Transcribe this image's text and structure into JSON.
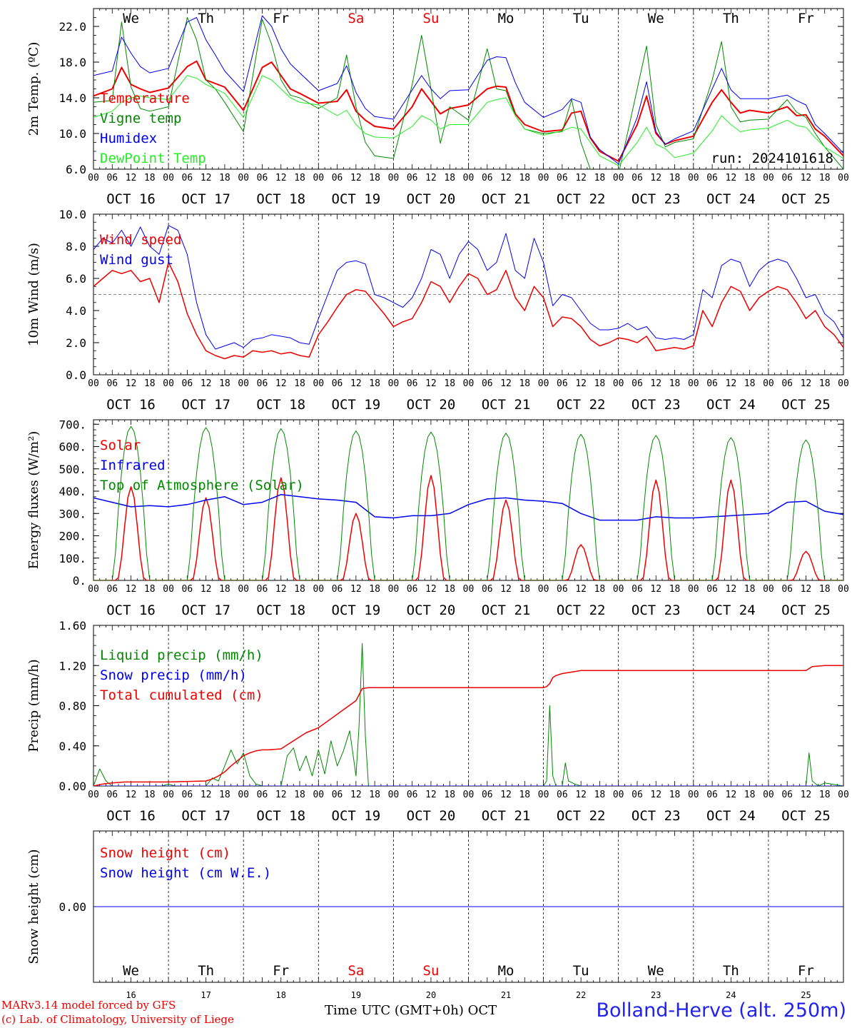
{
  "days": [
    {
      "weekday": "We",
      "date": "OCT 16",
      "num": "16",
      "weekend": false
    },
    {
      "weekday": "Th",
      "date": "OCT 17",
      "num": "17",
      "weekend": false
    },
    {
      "weekday": "Fr",
      "date": "OCT 18",
      "num": "18",
      "weekend": false
    },
    {
      "weekday": "Sa",
      "date": "OCT 19",
      "num": "19",
      "weekend": true
    },
    {
      "weekday": "Su",
      "date": "OCT 20",
      "num": "20",
      "weekend": true
    },
    {
      "weekday": "Mo",
      "date": "OCT 21",
      "num": "21",
      "weekend": false
    },
    {
      "weekday": "Tu",
      "date": "OCT 22",
      "num": "22",
      "weekend": false
    },
    {
      "weekday": "We",
      "date": "OCT 23",
      "num": "23",
      "weekend": false
    },
    {
      "weekday": "Th",
      "date": "OCT 24",
      "num": "24",
      "weekend": false
    },
    {
      "weekday": "Fr",
      "date": "OCT 25",
      "num": "25",
      "weekend": false
    }
  ],
  "hour_labels": [
    "00",
    "06",
    "12",
    "18"
  ],
  "footer": {
    "credit_line1": "MARv3.14 model forced by GFS",
    "credit_line2": "(c) Lab. of Climatology, University of Liege",
    "time_axis_label": "Time UTC (GMT+0h) OCT",
    "station": "Bolland-Herve (alt. 250m)"
  },
  "colors": {
    "red": "#ee0000",
    "green": "#008800",
    "blue": "#0000ee",
    "lightgreen": "#22ee22",
    "purple": "#880088",
    "weekend": "#ee0000"
  },
  "chart_data": [
    {
      "type": "line",
      "ylabel": "2m Temp. (ºC)",
      "ylim": [
        6,
        24
      ],
      "yticks": [
        6,
        10,
        14,
        18,
        22
      ],
      "ytick_labels": [
        "6.0",
        "10.0",
        "14.0",
        "18.0",
        "22.0"
      ],
      "run_label": "run: 2024101618",
      "x_hours": [
        0,
        6,
        9,
        12,
        15,
        18,
        24,
        30,
        33,
        36,
        39,
        42,
        48,
        54,
        57,
        60,
        63,
        66,
        72,
        78,
        81,
        84,
        87,
        90,
        96,
        102,
        105,
        108,
        111,
        114,
        120,
        126,
        129,
        132,
        135,
        138,
        144,
        150,
        153,
        156,
        159,
        162,
        168,
        174,
        177,
        180,
        183,
        186,
        192,
        198,
        201,
        204,
        207,
        210,
        216,
        222,
        225,
        228,
        231,
        234,
        240
      ],
      "series": [
        {
          "name": "Temperature",
          "color": "#ee0000",
          "width": 2,
          "values": [
            14.2,
            15.0,
            17.4,
            15.5,
            15.0,
            14.6,
            15.1,
            17.5,
            18.1,
            16.0,
            15.6,
            15.2,
            12.6,
            17.4,
            18.0,
            16.5,
            15.0,
            14.5,
            13.4,
            13.6,
            14.9,
            12.5,
            11.5,
            10.8,
            10.5,
            13.0,
            15.0,
            13.6,
            12.2,
            12.8,
            13.2,
            15.0,
            15.3,
            15.2,
            12.2,
            11.0,
            10.2,
            10.4,
            12.3,
            12.5,
            9.5,
            8.0,
            6.9,
            11.0,
            14.2,
            10.0,
            8.8,
            9.2,
            9.7,
            13.5,
            14.9,
            13.5,
            12.3,
            12.6,
            12.3,
            13.0,
            12.0,
            12.1,
            10.5,
            9.7,
            7.5
          ]
        },
        {
          "name": "Vigne temp",
          "color": "#008800",
          "width": 1,
          "values": [
            13.5,
            13.7,
            22.5,
            15.2,
            12.8,
            12.5,
            13.0,
            23.0,
            20.5,
            16.0,
            15.0,
            13.5,
            10.2,
            22.8,
            20.0,
            16.0,
            14.3,
            14.0,
            12.8,
            14.0,
            18.8,
            13.0,
            9.0,
            7.5,
            7.2,
            15.5,
            21.0,
            15.0,
            8.9,
            13.0,
            11.5,
            19.5,
            15.0,
            14.8,
            12.0,
            10.5,
            10.0,
            10.2,
            13.8,
            9.0,
            6.0,
            5.8,
            5.4,
            15.0,
            19.8,
            11.0,
            8.5,
            9.0,
            9.4,
            16.0,
            20.3,
            13.0,
            11.3,
            11.5,
            11.6,
            13.8,
            12.4,
            11.8,
            10.0,
            8.5,
            6.0
          ]
        },
        {
          "name": "Humidex",
          "color": "#0000ee",
          "width": 1,
          "values": [
            16.5,
            17.0,
            20.8,
            19.0,
            17.5,
            16.8,
            17.3,
            22.5,
            23.0,
            20.5,
            18.8,
            17.0,
            14.7,
            23.2,
            22.0,
            19.5,
            17.8,
            16.8,
            14.8,
            15.6,
            17.6,
            14.6,
            12.8,
            11.9,
            11.6,
            14.9,
            16.5,
            15.0,
            13.9,
            14.8,
            14.9,
            18.2,
            18.6,
            18.5,
            15.7,
            13.5,
            11.8,
            12.7,
            13.9,
            13.5,
            9.6,
            8.2,
            6.6,
            11.8,
            15.8,
            10.2,
            8.8,
            9.4,
            10.3,
            15.0,
            17.3,
            14.9,
            13.9,
            13.9,
            13.9,
            14.3,
            13.7,
            13.2,
            11.0,
            10.0,
            7.8
          ]
        },
        {
          "name": "DewPoint Temp",
          "color": "#22ee22",
          "width": 1,
          "values": [
            11.8,
            12.5,
            13.5,
            14.0,
            14.2,
            14.0,
            13.8,
            16.5,
            16.2,
            15.5,
            15.0,
            14.5,
            11.8,
            16.5,
            16.0,
            15.0,
            14.0,
            13.5,
            13.2,
            12.0,
            12.6,
            11.0,
            10.0,
            9.6,
            9.5,
            10.8,
            12.0,
            11.5,
            10.5,
            11.0,
            11.0,
            13.5,
            13.8,
            14.0,
            12.0,
            10.5,
            9.8,
            10.3,
            10.7,
            10.5,
            9.0,
            7.5,
            6.4,
            9.0,
            10.7,
            8.8,
            8.3,
            7.3,
            7.8,
            10.3,
            12.0,
            11.0,
            10.2,
            10.4,
            10.6,
            11.5,
            10.9,
            10.7,
            9.5,
            8.5,
            7.2
          ]
        }
      ]
    },
    {
      "type": "line",
      "ylabel": "10m Wind (m/s)",
      "ylim": [
        0,
        10
      ],
      "yticks": [
        0,
        2,
        4,
        6,
        8,
        10
      ],
      "ytick_labels": [
        "0.0",
        "2.0",
        "4.0",
        "6.0",
        "8.0",
        "10.0"
      ],
      "reference_line": 5,
      "x_hours": [
        0,
        3,
        6,
        9,
        12,
        15,
        18,
        21,
        24,
        27,
        30,
        33,
        36,
        39,
        42,
        45,
        48,
        51,
        54,
        57,
        60,
        63,
        66,
        69,
        72,
        75,
        78,
        81,
        84,
        87,
        90,
        93,
        96,
        99,
        102,
        105,
        108,
        111,
        114,
        117,
        120,
        123,
        126,
        129,
        132,
        135,
        138,
        141,
        144,
        147,
        150,
        153,
        156,
        159,
        162,
        165,
        168,
        171,
        174,
        177,
        180,
        183,
        186,
        189,
        192,
        195,
        198,
        201,
        204,
        207,
        210,
        213,
        216,
        219,
        222,
        225,
        228,
        231,
        234,
        237,
        240
      ],
      "series": [
        {
          "name": "Wind speed",
          "color": "#ee0000",
          "width": 1.5,
          "values": [
            5.5,
            6.0,
            6.5,
            6.3,
            6.5,
            5.8,
            6.0,
            4.5,
            7.0,
            5.8,
            3.8,
            2.5,
            1.5,
            1.2,
            1.0,
            1.2,
            1.1,
            1.5,
            1.4,
            1.5,
            1.3,
            1.4,
            1.2,
            1.1,
            2.5,
            3.3,
            4.2,
            5.0,
            5.3,
            5.2,
            4.5,
            3.8,
            3.0,
            3.3,
            3.5,
            4.5,
            5.8,
            5.5,
            4.5,
            5.5,
            6.3,
            6.0,
            5.0,
            5.3,
            6.5,
            4.8,
            4.0,
            5.5,
            4.8,
            3.0,
            3.6,
            3.5,
            3.0,
            2.2,
            1.8,
            2.0,
            2.3,
            2.2,
            2.0,
            2.4,
            1.5,
            1.6,
            1.7,
            1.6,
            1.8,
            4.0,
            3.0,
            4.5,
            5.5,
            5.2,
            4.0,
            4.8,
            5.2,
            5.5,
            5.3,
            4.5,
            3.5,
            4.0,
            3.0,
            2.5,
            1.7
          ]
        },
        {
          "name": "Wind gust",
          "color": "#0000ee",
          "width": 1,
          "values": [
            7.8,
            8.5,
            8.2,
            9.0,
            8.0,
            9.2,
            8.0,
            7.5,
            9.3,
            9.0,
            7.5,
            4.5,
            2.5,
            1.6,
            1.8,
            2.0,
            1.7,
            2.2,
            2.3,
            2.5,
            2.4,
            2.3,
            2.0,
            1.9,
            3.5,
            5.0,
            6.5,
            7.0,
            7.1,
            6.9,
            5.0,
            4.8,
            4.5,
            4.2,
            4.8,
            6.0,
            7.8,
            7.5,
            6.0,
            7.5,
            8.3,
            7.8,
            6.5,
            7.0,
            8.8,
            6.5,
            6.0,
            8.5,
            7.0,
            4.3,
            5.0,
            4.8,
            4.0,
            3.2,
            2.8,
            2.8,
            2.9,
            3.2,
            2.8,
            3.0,
            2.3,
            2.2,
            2.3,
            2.2,
            2.5,
            5.3,
            4.8,
            6.8,
            7.2,
            7.0,
            5.5,
            6.5,
            7.0,
            7.2,
            7.0,
            6.0,
            4.8,
            5.0,
            3.8,
            3.3,
            2.3
          ]
        }
      ]
    },
    {
      "type": "line",
      "ylabel": "Energy fluxes (W/m²)",
      "ylim": [
        0,
        720
      ],
      "yticks": [
        0,
        100,
        200,
        300,
        400,
        500,
        600,
        700
      ],
      "ytick_labels": [
        "0.",
        "100.",
        "200.",
        "300.",
        "400.",
        "500.",
        "600.",
        "700."
      ],
      "peaks": {
        "Solar": [
          420,
          370,
          460,
          300,
          470,
          360,
          160,
          450,
          450,
          130
        ],
        "Top of Atmosphere (Solar)": [
          690,
          685,
          680,
          670,
          665,
          660,
          655,
          650,
          640,
          630
        ]
      },
      "series": [
        {
          "name": "Solar",
          "color": "#ee0000",
          "width": 1.5
        },
        {
          "name": "Infrared",
          "color": "#0000ee",
          "width": 1.5,
          "x_hours": [
            0,
            6,
            12,
            18,
            24,
            30,
            36,
            42,
            48,
            54,
            60,
            66,
            72,
            78,
            84,
            90,
            96,
            102,
            108,
            114,
            120,
            126,
            132,
            138,
            144,
            150,
            156,
            162,
            168,
            174,
            180,
            186,
            192,
            198,
            204,
            210,
            216,
            222,
            228,
            234,
            240
          ],
          "values": [
            370,
            350,
            330,
            335,
            330,
            340,
            360,
            375,
            340,
            350,
            385,
            375,
            365,
            360,
            350,
            285,
            280,
            290,
            290,
            300,
            340,
            365,
            370,
            360,
            355,
            345,
            300,
            270,
            270,
            270,
            285,
            280,
            280,
            285,
            290,
            295,
            300,
            350,
            355,
            310,
            295
          ]
        },
        {
          "name": "Top of Atmosphere (Solar)",
          "color": "#008800",
          "width": 1
        }
      ]
    },
    {
      "type": "line",
      "ylabel": "Precip (mm/h)",
      "ylim": [
        0,
        1.6
      ],
      "yticks": [
        0,
        0.4,
        0.8,
        1.2,
        1.6
      ],
      "ytick_labels": [
        "0.00",
        "0.40",
        "0.80",
        "1.20",
        "1.60"
      ],
      "series": [
        {
          "name": "Liquid precip (mm/h)",
          "color": "#008800",
          "width": 1,
          "x_hours": [
            0,
            2,
            4,
            6,
            8,
            22,
            24,
            26,
            36,
            38,
            40,
            42,
            44,
            46,
            48,
            50,
            52,
            54,
            60,
            62,
            64,
            66,
            68,
            70,
            72,
            74,
            76,
            78,
            80,
            82,
            84,
            85,
            86,
            87,
            88,
            90,
            144,
            145,
            146,
            147,
            148,
            150,
            151,
            152,
            154,
            156,
            170,
            228,
            229,
            230,
            232,
            234,
            240
          ],
          "values": [
            0,
            0.17,
            0.05,
            0,
            0,
            0,
            0.02,
            0,
            0,
            0.08,
            0.05,
            0.2,
            0.36,
            0.22,
            0.33,
            0.1,
            0.02,
            0,
            0,
            0.3,
            0.38,
            0.15,
            0.3,
            0.1,
            0.36,
            0.12,
            0.45,
            0.2,
            0.35,
            0.55,
            0.1,
            0.6,
            1.42,
            0.5,
            0,
            0,
            0,
            0.05,
            0.8,
            0.1,
            0,
            0,
            0.23,
            0.05,
            0.02,
            0,
            0,
            0,
            0.33,
            0.05,
            0,
            0.03,
            0
          ]
        },
        {
          "name": "Snow precip (mm/h)",
          "color": "#0000ee",
          "width": 1,
          "x_hours": [
            0,
            240
          ],
          "values": [
            0,
            0
          ]
        },
        {
          "name": "Total cumulated (cm)",
          "color": "#ee0000",
          "width": 1.5,
          "x_hours": [
            0,
            3,
            6,
            10,
            24,
            36,
            38,
            40,
            42,
            44,
            46,
            48,
            50,
            52,
            54,
            56,
            60,
            64,
            68,
            72,
            76,
            80,
            84,
            86,
            88,
            90,
            144,
            145,
            146,
            147,
            148,
            150,
            152,
            154,
            156,
            170,
            228,
            230,
            234,
            240
          ],
          "values": [
            0,
            0.02,
            0.03,
            0.04,
            0.04,
            0.05,
            0.07,
            0.1,
            0.14,
            0.2,
            0.25,
            0.3,
            0.33,
            0.35,
            0.36,
            0.36,
            0.37,
            0.45,
            0.53,
            0.58,
            0.67,
            0.76,
            0.85,
            0.97,
            0.98,
            0.98,
            0.98,
            0.99,
            1.02,
            1.08,
            1.1,
            1.12,
            1.13,
            1.14,
            1.15,
            1.15,
            1.15,
            1.19,
            1.2,
            1.2
          ]
        }
      ]
    },
    {
      "type": "line",
      "ylabel": "Snow height (cm)",
      "ylim": [
        -1,
        1
      ],
      "yticks": [
        0
      ],
      "ytick_labels": [
        "0.00"
      ],
      "series": [
        {
          "name": "Snow height (cm)",
          "color": "#ee0000",
          "width": 1,
          "x_hours": [
            0,
            240
          ],
          "values": [
            0,
            0
          ]
        },
        {
          "name": "Snow height (cm W.E.)",
          "color": "#0000ee",
          "width": 1,
          "x_hours": [
            0,
            240
          ],
          "values": [
            0,
            0
          ]
        }
      ]
    }
  ]
}
